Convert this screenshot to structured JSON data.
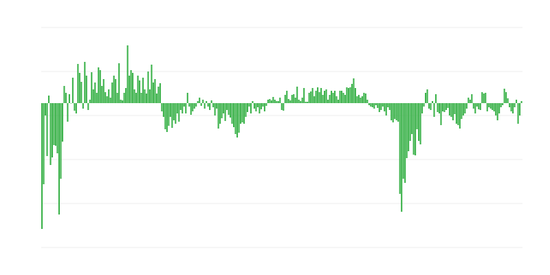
{
  "chart_data": {
    "type": "bar",
    "title": "",
    "xlabel": "",
    "ylabel": "",
    "ylim": [
      -21,
      11
    ],
    "grid": true,
    "gridline_values": [
      11,
      4.6,
      -1.8,
      -8.2,
      -14.6,
      -21
    ],
    "legend": "none",
    "colors": {
      "bar": "#3bb24a",
      "grid": "#ececec"
    },
    "values": [
      -18.3,
      -11.8,
      -1.8,
      -7.7,
      1.1,
      -9,
      -7.9,
      -6.1,
      -6.2,
      -7.3,
      -16.2,
      -11,
      -5.6,
      2.5,
      1.5,
      -2.7,
      1.3,
      0,
      3.7,
      -1.1,
      -1.5,
      5.7,
      4.4,
      3.1,
      -0.8,
      6,
      4,
      -1,
      0.5,
      4.5,
      2,
      3,
      1.5,
      5.2,
      4.8,
      2.5,
      3.5,
      1.6,
      1,
      2,
      0.8,
      3,
      4,
      3.5,
      1.5,
      5.8,
      0.5,
      0.4,
      1.5,
      2.2,
      8.4,
      4,
      4.8,
      4.4,
      2,
      1.5,
      4,
      3.3,
      1.5,
      3.7,
      2,
      1.4,
      4.6,
      2,
      5.6,
      3,
      3.5,
      1.4,
      2.4,
      2.9,
      -1.2,
      -2,
      -3.8,
      -4.2,
      -3.3,
      -2,
      -3.6,
      -2.5,
      -3,
      -1.5,
      -2.7,
      -1,
      -1.5,
      -0.5,
      -1.5,
      1.5,
      -0.5,
      -1.7,
      -1.2,
      -0.8,
      -0.5,
      0.3,
      0.8,
      -0.4,
      0.5,
      -0.8,
      0.3,
      -0.5,
      -1,
      0.4,
      -0.6,
      -1.8,
      -0.8,
      -3.7,
      -3,
      -2.2,
      -1.5,
      -2.6,
      -1,
      -1.7,
      -2.1,
      -3,
      -3.5,
      -4.5,
      -5,
      -4.3,
      -3,
      -2.8,
      -3,
      -2,
      -1.3,
      -0.5,
      -1.5,
      0.3,
      -0.8,
      -1.2,
      -0.6,
      -1.5,
      -0.9,
      -0.5,
      -1.2,
      -0.4,
      0.5,
      0.6,
      0.4,
      0.9,
      0.5,
      0.3,
      0.3,
      0.8,
      -1,
      -1.1,
      1.2,
      1.8,
      0.6,
      0.4,
      1.2,
      1.3,
      0.8,
      2.4,
      0.5,
      0.3,
      0.8,
      2.2,
      0.2,
      0.2,
      1.5,
      1.7,
      2.2,
      1,
      1.8,
      2.3,
      1.6,
      2.2,
      1.2,
      1.8,
      2,
      0.5,
      1.2,
      1.8,
      1.5,
      1.8,
      1,
      0.5,
      1.8,
      1.8,
      1.5,
      1.2,
      2.3,
      2.2,
      2.3,
      2.8,
      3.6,
      2.2,
      1,
      1.2,
      0.8,
      1,
      1.5,
      1.4,
      0.5,
      -0.3,
      -0.5,
      -0.6,
      -0.8,
      -0.3,
      -0.7,
      -1.3,
      -1,
      -0.5,
      -1.2,
      -1.8,
      -0.6,
      -1,
      -2.5,
      -2.8,
      -2.3,
      -2.5,
      -2.7,
      -13.2,
      -15.8,
      -11,
      -11.6,
      -8,
      -7,
      -5.5,
      -4.5,
      -7.5,
      -7.6,
      -3.8,
      -5.5,
      -6,
      -1.5,
      -0.5,
      1.5,
      2,
      -0.8,
      -1,
      0.3,
      -2,
      1.3,
      -1.3,
      -1.5,
      -3.2,
      -1.2,
      -1.3,
      -1,
      -0.7,
      -1.8,
      -2,
      -2.5,
      -1.6,
      -3,
      -3.2,
      -3.7,
      -2.3,
      -1.8,
      -1.5,
      -0.8,
      0.8,
      0.5,
      1.3,
      -0.8,
      -1.5,
      -0.5,
      -0.9,
      -1,
      1.6,
      1.4,
      1.5,
      -1.2,
      -0.6,
      -0.8,
      -1,
      -1.2,
      -1.8,
      -2.5,
      -1.5,
      -0.6,
      -0.3,
      2.1,
      1.6,
      0.7,
      -0.6,
      -1.2,
      -1.5,
      -0.6,
      0.5,
      -3,
      -1.8,
      0.3
    ]
  }
}
